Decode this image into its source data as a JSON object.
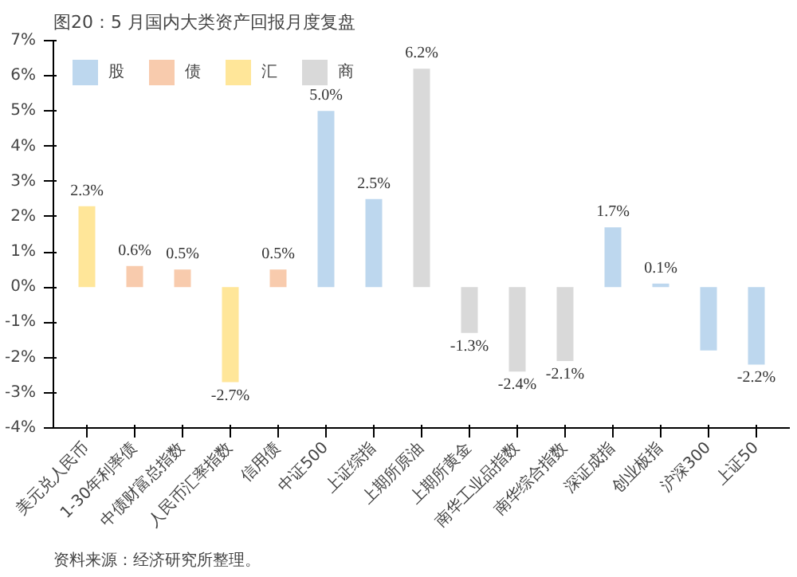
{
  "chart_data": {
    "type": "bar",
    "title": "图20：5 月国内大类资产回报月度复盘",
    "categories": [
      "美元兑人民币",
      "1-30年利率债",
      "中债财富总指数",
      "人民币汇率指数",
      "信用债",
      "中证500",
      "上证综指",
      "上期所原油",
      "上期所黄金",
      "南华工业品指数",
      "南华综合指数",
      "深证成指",
      "创业板指",
      "沪深300",
      "上证50"
    ],
    "series": [
      {
        "name": "股",
        "color": "#bdd7ee",
        "values": [
          null,
          null,
          null,
          null,
          null,
          5.0,
          2.5,
          null,
          null,
          null,
          null,
          1.7,
          0.1,
          -1.8,
          -2.2
        ],
        "value_labels": [
          null,
          null,
          null,
          null,
          null,
          "5.0%",
          "2.5%",
          null,
          null,
          null,
          null,
          "1.7%",
          "0.1%",
          null,
          "-2.2%"
        ]
      },
      {
        "name": "债",
        "color": "#f8cbad",
        "values": [
          null,
          0.6,
          0.5,
          null,
          0.5,
          null,
          null,
          null,
          null,
          null,
          null,
          null,
          null,
          null,
          null
        ],
        "value_labels": [
          null,
          "0.6%",
          "0.5%",
          null,
          "0.5%",
          null,
          null,
          null,
          null,
          null,
          null,
          null,
          null,
          null,
          null
        ]
      },
      {
        "name": "汇",
        "color": "#ffe699",
        "values": [
          2.3,
          null,
          null,
          -2.7,
          null,
          null,
          null,
          null,
          null,
          null,
          null,
          null,
          null,
          null,
          null
        ],
        "value_labels": [
          "2.3%",
          null,
          null,
          "-2.7%",
          null,
          null,
          null,
          null,
          null,
          null,
          null,
          null,
          null,
          null,
          null
        ]
      },
      {
        "name": "商",
        "color": "#d9d9d9",
        "values": [
          null,
          null,
          null,
          null,
          null,
          null,
          null,
          6.2,
          -1.3,
          -2.4,
          -2.1,
          null,
          null,
          null,
          null
        ],
        "value_labels": [
          null,
          null,
          null,
          null,
          null,
          null,
          null,
          "6.2%",
          "-1.3%",
          "-2.4%",
          "-2.1%",
          null,
          null,
          null,
          null
        ]
      }
    ],
    "ylim": [
      -4,
      7
    ],
    "yticks": [
      {
        "value": -4,
        "label": "-4%"
      },
      {
        "value": -3,
        "label": "-3%"
      },
      {
        "value": -2,
        "label": "-2%"
      },
      {
        "value": -1,
        "label": "-1%"
      },
      {
        "value": 0,
        "label": "0%"
      },
      {
        "value": 1,
        "label": "1%"
      },
      {
        "value": 2,
        "label": "2%"
      },
      {
        "value": 3,
        "label": "3%"
      },
      {
        "value": 4,
        "label": "4%"
      },
      {
        "value": 5,
        "label": "5%"
      },
      {
        "value": 6,
        "label": "6%"
      },
      {
        "value": 7,
        "label": "7%"
      }
    ],
    "grid": false,
    "legend": "top left",
    "annotations": [
      "资料来源：经济研究所整理。"
    ]
  }
}
